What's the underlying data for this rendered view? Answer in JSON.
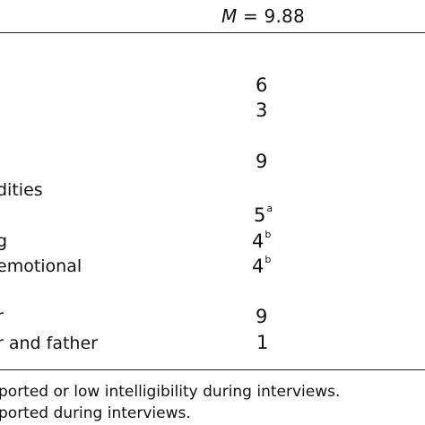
{
  "header": {
    "mean_symbol": "M",
    "mean_value": "= 9.88"
  },
  "rows": [
    {
      "label": "",
      "value": "6",
      "sup": ""
    },
    {
      "label": "",
      "value": "3",
      "sup": ""
    },
    {
      "label": "",
      "value": "9",
      "sup": ""
    },
    {
      "label": "dities",
      "value": "",
      "sup": ""
    },
    {
      "label": "",
      "value": "5",
      "sup": "a"
    },
    {
      "label": "g",
      "value": "4",
      "sup": "b"
    },
    {
      "label": "emotional",
      "value": "4",
      "sup": "b"
    },
    {
      "label": "r",
      "value": "9",
      "sup": ""
    },
    {
      "label": "r and father",
      "value": "1",
      "sup": ""
    }
  ],
  "notes": [
    "ported or low intelligibility during interviews.",
    "ported during interviews."
  ]
}
